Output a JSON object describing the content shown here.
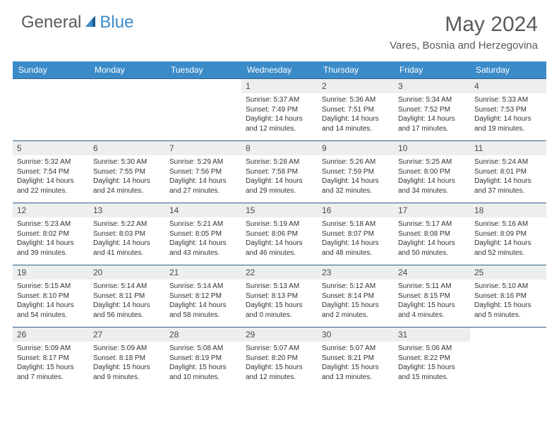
{
  "brand": {
    "part1": "General",
    "part2": "Blue"
  },
  "title": "May 2024",
  "location": "Vares, Bosnia and Herzegovina",
  "colors": {
    "header_bg": "#3b8bc9",
    "header_text": "#ffffff",
    "border": "#2d5f8a",
    "daynum_bg": "#eceeef",
    "logo_gray": "#5a5a5a",
    "logo_blue": "#3b8bc9",
    "body_text": "#333333"
  },
  "weekdays": [
    "Sunday",
    "Monday",
    "Tuesday",
    "Wednesday",
    "Thursday",
    "Friday",
    "Saturday"
  ],
  "grid": [
    [
      null,
      null,
      null,
      {
        "n": "1",
        "sr": "5:37 AM",
        "ss": "7:49 PM",
        "dl": "14 hours and 12 minutes."
      },
      {
        "n": "2",
        "sr": "5:36 AM",
        "ss": "7:51 PM",
        "dl": "14 hours and 14 minutes."
      },
      {
        "n": "3",
        "sr": "5:34 AM",
        "ss": "7:52 PM",
        "dl": "14 hours and 17 minutes."
      },
      {
        "n": "4",
        "sr": "5:33 AM",
        "ss": "7:53 PM",
        "dl": "14 hours and 19 minutes."
      }
    ],
    [
      {
        "n": "5",
        "sr": "5:32 AM",
        "ss": "7:54 PM",
        "dl": "14 hours and 22 minutes."
      },
      {
        "n": "6",
        "sr": "5:30 AM",
        "ss": "7:55 PM",
        "dl": "14 hours and 24 minutes."
      },
      {
        "n": "7",
        "sr": "5:29 AM",
        "ss": "7:56 PM",
        "dl": "14 hours and 27 minutes."
      },
      {
        "n": "8",
        "sr": "5:28 AM",
        "ss": "7:58 PM",
        "dl": "14 hours and 29 minutes."
      },
      {
        "n": "9",
        "sr": "5:26 AM",
        "ss": "7:59 PM",
        "dl": "14 hours and 32 minutes."
      },
      {
        "n": "10",
        "sr": "5:25 AM",
        "ss": "8:00 PM",
        "dl": "14 hours and 34 minutes."
      },
      {
        "n": "11",
        "sr": "5:24 AM",
        "ss": "8:01 PM",
        "dl": "14 hours and 37 minutes."
      }
    ],
    [
      {
        "n": "12",
        "sr": "5:23 AM",
        "ss": "8:02 PM",
        "dl": "14 hours and 39 minutes."
      },
      {
        "n": "13",
        "sr": "5:22 AM",
        "ss": "8:03 PM",
        "dl": "14 hours and 41 minutes."
      },
      {
        "n": "14",
        "sr": "5:21 AM",
        "ss": "8:05 PM",
        "dl": "14 hours and 43 minutes."
      },
      {
        "n": "15",
        "sr": "5:19 AM",
        "ss": "8:06 PM",
        "dl": "14 hours and 46 minutes."
      },
      {
        "n": "16",
        "sr": "5:18 AM",
        "ss": "8:07 PM",
        "dl": "14 hours and 48 minutes."
      },
      {
        "n": "17",
        "sr": "5:17 AM",
        "ss": "8:08 PM",
        "dl": "14 hours and 50 minutes."
      },
      {
        "n": "18",
        "sr": "5:16 AM",
        "ss": "8:09 PM",
        "dl": "14 hours and 52 minutes."
      }
    ],
    [
      {
        "n": "19",
        "sr": "5:15 AM",
        "ss": "8:10 PM",
        "dl": "14 hours and 54 minutes."
      },
      {
        "n": "20",
        "sr": "5:14 AM",
        "ss": "8:11 PM",
        "dl": "14 hours and 56 minutes."
      },
      {
        "n": "21",
        "sr": "5:14 AM",
        "ss": "8:12 PM",
        "dl": "14 hours and 58 minutes."
      },
      {
        "n": "22",
        "sr": "5:13 AM",
        "ss": "8:13 PM",
        "dl": "15 hours and 0 minutes."
      },
      {
        "n": "23",
        "sr": "5:12 AM",
        "ss": "8:14 PM",
        "dl": "15 hours and 2 minutes."
      },
      {
        "n": "24",
        "sr": "5:11 AM",
        "ss": "8:15 PM",
        "dl": "15 hours and 4 minutes."
      },
      {
        "n": "25",
        "sr": "5:10 AM",
        "ss": "8:16 PM",
        "dl": "15 hours and 5 minutes."
      }
    ],
    [
      {
        "n": "26",
        "sr": "5:09 AM",
        "ss": "8:17 PM",
        "dl": "15 hours and 7 minutes."
      },
      {
        "n": "27",
        "sr": "5:09 AM",
        "ss": "8:18 PM",
        "dl": "15 hours and 9 minutes."
      },
      {
        "n": "28",
        "sr": "5:08 AM",
        "ss": "8:19 PM",
        "dl": "15 hours and 10 minutes."
      },
      {
        "n": "29",
        "sr": "5:07 AM",
        "ss": "8:20 PM",
        "dl": "15 hours and 12 minutes."
      },
      {
        "n": "30",
        "sr": "5:07 AM",
        "ss": "8:21 PM",
        "dl": "15 hours and 13 minutes."
      },
      {
        "n": "31",
        "sr": "5:06 AM",
        "ss": "8:22 PM",
        "dl": "15 hours and 15 minutes."
      },
      null
    ]
  ],
  "labels": {
    "sunrise": "Sunrise:",
    "sunset": "Sunset:",
    "daylight": "Daylight:"
  }
}
